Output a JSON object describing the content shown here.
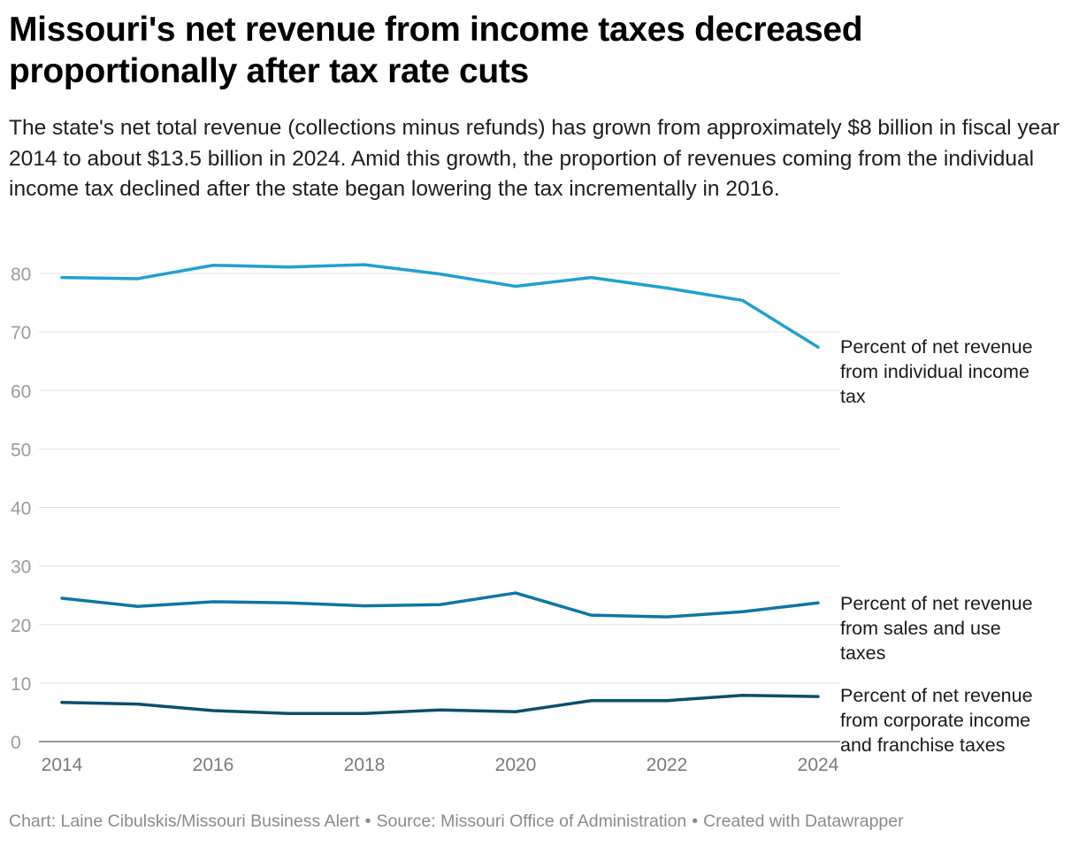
{
  "header": {
    "title": "Missouri's net revenue from income taxes decreased proportionally after tax rate cuts",
    "subtitle": "The state's net total revenue (collections minus refunds) has grown from approximately $8 billion in fiscal year 2014 to about $13.5 billion in 2024. Amid this growth, the proportion of revenues coming from the individual income tax declined after the state began lowering the tax incrementally in 2016."
  },
  "footer": {
    "credit": "Chart: Laine Cibulskis/Missouri Business Alert",
    "source": "Source: Missouri Office of Administration",
    "tool": "Created with Datawrapper",
    "separator": "•"
  },
  "chart_data": {
    "type": "line",
    "x": [
      2014,
      2015,
      2016,
      2017,
      2018,
      2019,
      2020,
      2021,
      2022,
      2023,
      2024
    ],
    "x_ticks": [
      "2014",
      "2016",
      "2018",
      "2020",
      "2022",
      "2024"
    ],
    "y_ticks": [
      "0",
      "10",
      "20",
      "30",
      "40",
      "50",
      "60",
      "70",
      "80"
    ],
    "ylim": [
      0,
      80
    ],
    "grid": true,
    "legend": "direct labels at line ends (right)",
    "series": [
      {
        "name": "Percent of net revenue from individual income tax",
        "label_lines": [
          "Percent of net revenue",
          "from individual income",
          "tax"
        ],
        "color": "#1ea1cf",
        "values": [
          79.3,
          79.1,
          81.4,
          81.1,
          81.5,
          79.9,
          77.8,
          79.3,
          77.5,
          75.4,
          67.4
        ]
      },
      {
        "name": "Percent of net revenue from sales and use taxes",
        "label_lines": [
          "Percent of net revenue",
          "from sales and use",
          "taxes"
        ],
        "color": "#0d77a3",
        "values": [
          24.5,
          23.1,
          23.9,
          23.7,
          23.2,
          23.4,
          25.4,
          21.6,
          21.3,
          22.2,
          23.7
        ]
      },
      {
        "name": "Percent of net revenue from corporate income and franchise taxes",
        "label_lines": [
          "Percent of net revenue",
          "from corporate income",
          "and franchise taxes"
        ],
        "color": "#0b4f6c",
        "values": [
          6.7,
          6.4,
          5.3,
          4.8,
          4.8,
          5.4,
          5.1,
          7.0,
          7.0,
          7.9,
          7.7
        ]
      }
    ]
  }
}
